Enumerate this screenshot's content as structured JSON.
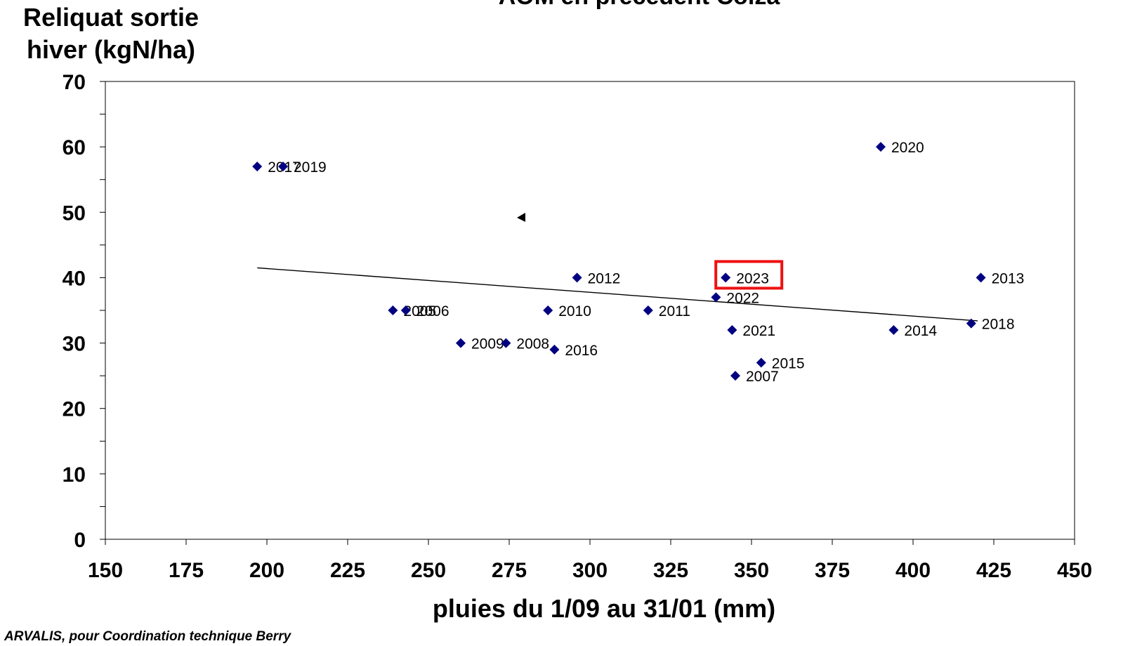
{
  "chart_data": {
    "type": "scatter",
    "title": "AOM en précédent Colza",
    "xlabel": "pluies du 1/09 au 31/01 (mm)",
    "ylabel": "Reliquat sortie hiver (kgN/ha)",
    "xlim": [
      150,
      450
    ],
    "ylim": [
      0,
      70
    ],
    "x_ticks": [
      "150",
      "175",
      "200",
      "225",
      "250",
      "275",
      "300",
      "325",
      "350",
      "375",
      "400",
      "425",
      "450"
    ],
    "y_ticks": [
      "0",
      "10",
      "20",
      "30",
      "40",
      "50",
      "60",
      "70"
    ],
    "grid": false,
    "marker_color": "#000080",
    "highlight_color": "#ee1111",
    "points": [
      {
        "label": "2017",
        "x": 197,
        "y": 57
      },
      {
        "label": "2019",
        "x": 205,
        "y": 57
      },
      {
        "label": "2005",
        "x": 239,
        "y": 35
      },
      {
        "label": "2006",
        "x": 243,
        "y": 35
      },
      {
        "label": "2009",
        "x": 260,
        "y": 30
      },
      {
        "label": "2008",
        "x": 274,
        "y": 30
      },
      {
        "label": "2010",
        "x": 287,
        "y": 35
      },
      {
        "label": "2016",
        "x": 289,
        "y": 29
      },
      {
        "label": "2012",
        "x": 296,
        "y": 40
      },
      {
        "label": "2011",
        "x": 318,
        "y": 35
      },
      {
        "label": "2022",
        "x": 339,
        "y": 37
      },
      {
        "label": "2023",
        "x": 342,
        "y": 40,
        "highlight": true
      },
      {
        "label": "2021",
        "x": 344,
        "y": 32
      },
      {
        "label": "2007",
        "x": 345,
        "y": 25
      },
      {
        "label": "2015",
        "x": 353,
        "y": 27
      },
      {
        "label": "2020",
        "x": 390,
        "y": 60
      },
      {
        "label": "2014",
        "x": 394,
        "y": 32
      },
      {
        "label": "2018",
        "x": 418,
        "y": 33
      },
      {
        "label": "2013",
        "x": 421,
        "y": 40
      }
    ],
    "trendline": {
      "x": [
        197,
        420
      ],
      "y": [
        41.5,
        33.4
      ]
    }
  },
  "footer": {
    "source": "ARVALIS, pour Coordination technique Berry"
  }
}
